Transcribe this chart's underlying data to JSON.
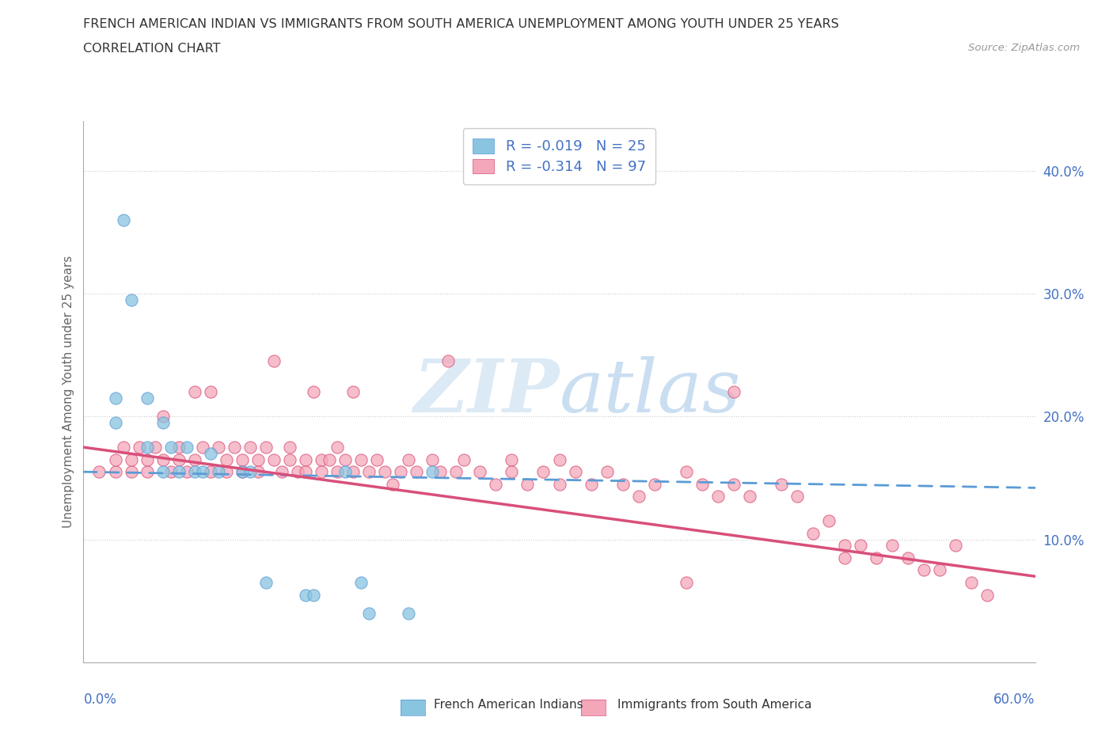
{
  "title_line1": "FRENCH AMERICAN INDIAN VS IMMIGRANTS FROM SOUTH AMERICA UNEMPLOYMENT AMONG YOUTH UNDER 25 YEARS",
  "title_line2": "CORRELATION CHART",
  "source": "Source: ZipAtlas.com",
  "ylabel": "Unemployment Among Youth under 25 years",
  "xlim": [
    0.0,
    0.6
  ],
  "ylim": [
    0.0,
    0.44
  ],
  "legend_label1": "French American Indians",
  "legend_label2": "Immigrants from South America",
  "R1": -0.019,
  "N1": 25,
  "R2": -0.314,
  "N2": 97,
  "color_blue": "#89C4E1",
  "color_pink": "#F4A7B9",
  "color_blue_line": "#5B9BD5",
  "color_pink_line": "#D94F7A",
  "grid_color": "#CCCCCC",
  "blue_pts": [
    [
      0.02,
      0.215
    ],
    [
      0.02,
      0.195
    ],
    [
      0.025,
      0.36
    ],
    [
      0.03,
      0.295
    ],
    [
      0.04,
      0.215
    ],
    [
      0.04,
      0.175
    ],
    [
      0.05,
      0.195
    ],
    [
      0.05,
      0.155
    ],
    [
      0.055,
      0.175
    ],
    [
      0.06,
      0.155
    ],
    [
      0.065,
      0.175
    ],
    [
      0.07,
      0.155
    ],
    [
      0.075,
      0.155
    ],
    [
      0.08,
      0.17
    ],
    [
      0.085,
      0.155
    ],
    [
      0.1,
      0.155
    ],
    [
      0.105,
      0.155
    ],
    [
      0.115,
      0.065
    ],
    [
      0.14,
      0.055
    ],
    [
      0.145,
      0.055
    ],
    [
      0.165,
      0.155
    ],
    [
      0.175,
      0.065
    ],
    [
      0.18,
      0.04
    ],
    [
      0.205,
      0.04
    ],
    [
      0.22,
      0.155
    ]
  ],
  "pink_pts": [
    [
      0.01,
      0.155
    ],
    [
      0.02,
      0.155
    ],
    [
      0.02,
      0.165
    ],
    [
      0.025,
      0.175
    ],
    [
      0.03,
      0.155
    ],
    [
      0.03,
      0.165
    ],
    [
      0.035,
      0.175
    ],
    [
      0.04,
      0.155
    ],
    [
      0.04,
      0.165
    ],
    [
      0.045,
      0.175
    ],
    [
      0.05,
      0.2
    ],
    [
      0.05,
      0.165
    ],
    [
      0.055,
      0.155
    ],
    [
      0.06,
      0.165
    ],
    [
      0.06,
      0.175
    ],
    [
      0.065,
      0.155
    ],
    [
      0.07,
      0.22
    ],
    [
      0.07,
      0.165
    ],
    [
      0.075,
      0.175
    ],
    [
      0.08,
      0.155
    ],
    [
      0.08,
      0.22
    ],
    [
      0.085,
      0.175
    ],
    [
      0.09,
      0.165
    ],
    [
      0.09,
      0.155
    ],
    [
      0.095,
      0.175
    ],
    [
      0.1,
      0.165
    ],
    [
      0.1,
      0.155
    ],
    [
      0.105,
      0.175
    ],
    [
      0.11,
      0.165
    ],
    [
      0.11,
      0.155
    ],
    [
      0.115,
      0.175
    ],
    [
      0.12,
      0.165
    ],
    [
      0.12,
      0.245
    ],
    [
      0.125,
      0.155
    ],
    [
      0.13,
      0.165
    ],
    [
      0.13,
      0.175
    ],
    [
      0.135,
      0.155
    ],
    [
      0.14,
      0.165
    ],
    [
      0.14,
      0.155
    ],
    [
      0.145,
      0.22
    ],
    [
      0.15,
      0.165
    ],
    [
      0.15,
      0.155
    ],
    [
      0.155,
      0.165
    ],
    [
      0.16,
      0.155
    ],
    [
      0.16,
      0.175
    ],
    [
      0.165,
      0.165
    ],
    [
      0.17,
      0.22
    ],
    [
      0.17,
      0.155
    ],
    [
      0.175,
      0.165
    ],
    [
      0.18,
      0.155
    ],
    [
      0.185,
      0.165
    ],
    [
      0.19,
      0.155
    ],
    [
      0.195,
      0.145
    ],
    [
      0.2,
      0.155
    ],
    [
      0.205,
      0.165
    ],
    [
      0.21,
      0.155
    ],
    [
      0.22,
      0.165
    ],
    [
      0.225,
      0.155
    ],
    [
      0.23,
      0.245
    ],
    [
      0.235,
      0.155
    ],
    [
      0.24,
      0.165
    ],
    [
      0.25,
      0.155
    ],
    [
      0.26,
      0.145
    ],
    [
      0.27,
      0.165
    ],
    [
      0.27,
      0.155
    ],
    [
      0.28,
      0.145
    ],
    [
      0.29,
      0.155
    ],
    [
      0.3,
      0.145
    ],
    [
      0.3,
      0.165
    ],
    [
      0.31,
      0.155
    ],
    [
      0.32,
      0.145
    ],
    [
      0.33,
      0.155
    ],
    [
      0.34,
      0.145
    ],
    [
      0.35,
      0.135
    ],
    [
      0.36,
      0.145
    ],
    [
      0.38,
      0.155
    ],
    [
      0.38,
      0.065
    ],
    [
      0.39,
      0.145
    ],
    [
      0.4,
      0.135
    ],
    [
      0.41,
      0.145
    ],
    [
      0.41,
      0.22
    ],
    [
      0.42,
      0.135
    ],
    [
      0.44,
      0.145
    ],
    [
      0.45,
      0.135
    ],
    [
      0.46,
      0.105
    ],
    [
      0.47,
      0.115
    ],
    [
      0.48,
      0.095
    ],
    [
      0.48,
      0.085
    ],
    [
      0.49,
      0.095
    ],
    [
      0.5,
      0.085
    ],
    [
      0.51,
      0.095
    ],
    [
      0.52,
      0.085
    ],
    [
      0.53,
      0.075
    ],
    [
      0.54,
      0.075
    ],
    [
      0.55,
      0.095
    ],
    [
      0.56,
      0.065
    ],
    [
      0.57,
      0.055
    ]
  ],
  "blue_trend": [
    0.155,
    0.142
  ],
  "pink_trend": [
    0.175,
    0.07
  ]
}
